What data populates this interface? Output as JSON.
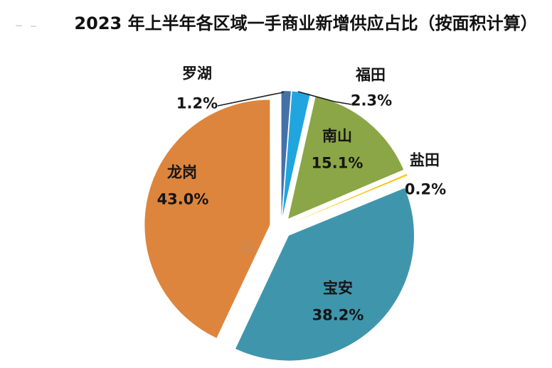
{
  "title": "2023 年上半年各区域一手商业新增供应占比（按面积计算）",
  "watermark": "公",
  "chart_data": {
    "type": "pie",
    "title": "2023 年上半年各区域一手商业新增供应占比（按面积计算）",
    "value_unit": "percent",
    "start_angle_deg": 0,
    "direction": "clockwise",
    "exploded": true,
    "legend": "none",
    "slices": [
      {
        "key": "luohu",
        "label": "罗湖",
        "value": 1.2,
        "pct_label": "1.2%",
        "color": "#4472A8",
        "label_placement": "outside-left-with-leader"
      },
      {
        "key": "futian",
        "label": "福田",
        "value": 2.3,
        "pct_label": "2.3%",
        "color": "#21A5DF",
        "label_placement": "outside-right-with-leader"
      },
      {
        "key": "nanshan",
        "label": "南山",
        "value": 15.1,
        "pct_label": "15.1%",
        "color": "#8BA646",
        "label_placement": "inside"
      },
      {
        "key": "yantian",
        "label": "盐田",
        "value": 0.2,
        "pct_label": "0.2%",
        "color": "#FFC000",
        "label_placement": "outside-right"
      },
      {
        "key": "baoan",
        "label": "宝安",
        "value": 38.2,
        "pct_label": "38.2%",
        "color": "#3F96AC",
        "label_placement": "inside"
      },
      {
        "key": "longgang",
        "label": "龙岗",
        "value": 43.0,
        "pct_label": "43.0%",
        "color": "#DD853D",
        "label_placement": "inside"
      }
    ]
  }
}
